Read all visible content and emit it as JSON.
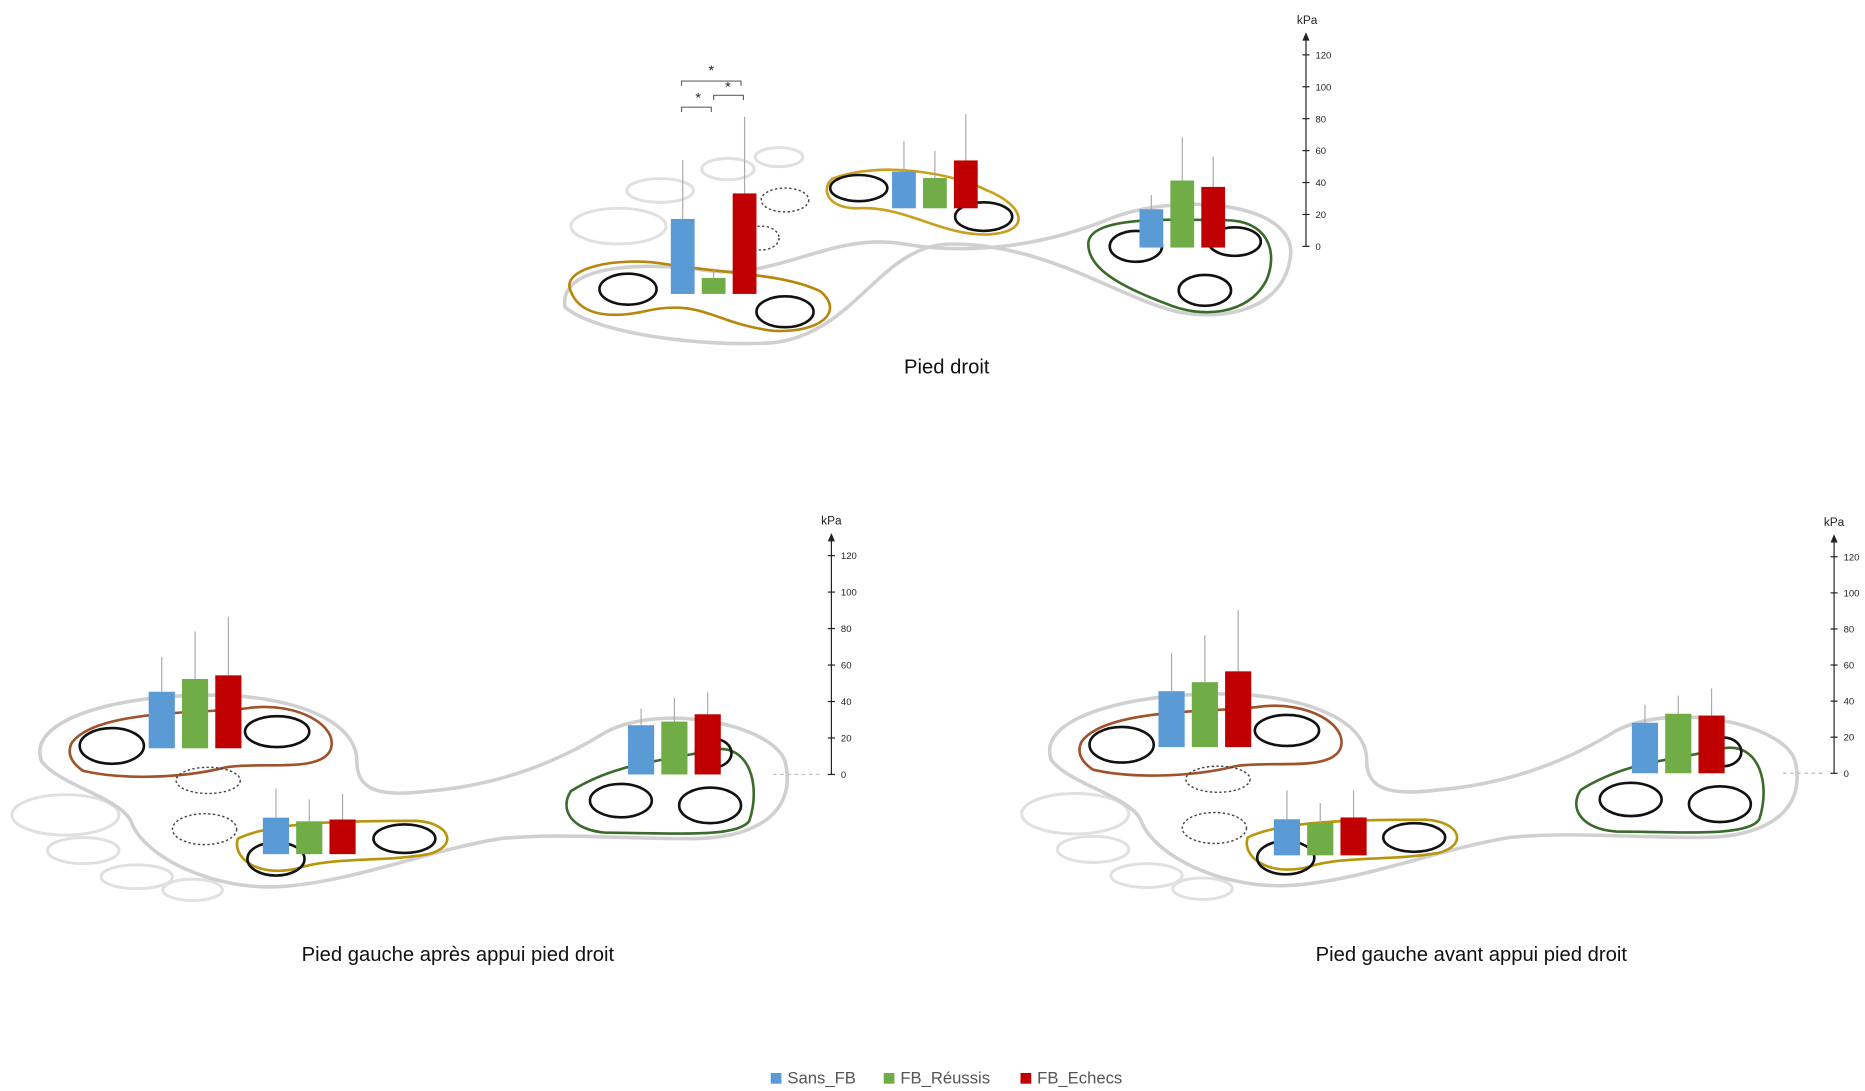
{
  "chart_data": [
    {
      "type": "bar",
      "title": "Pied droit",
      "y_label": "kPa",
      "ylim": [
        0,
        120
      ],
      "yticks": [
        0,
        20,
        40,
        60,
        80,
        100,
        120
      ],
      "series": [
        {
          "values": [
            47,
            23,
            24
          ],
          "errors": [
            37,
            19,
            9
          ]
        },
        {
          "values": [
            10,
            19,
            42
          ],
          "errors": [
            6,
            17,
            27
          ]
        },
        {
          "values": [
            63,
            30,
            38
          ],
          "errors": [
            48,
            29,
            19
          ]
        }
      ],
      "annotations": [
        "*",
        "*",
        "*"
      ]
    },
    {
      "type": "bar",
      "title": "Pied gauche après appui pied droit",
      "y_label": "kPa",
      "ylim": [
        0,
        120
      ],
      "yticks": [
        0,
        20,
        40,
        60,
        80,
        100,
        120
      ],
      "series": [
        {
          "values": [
            31,
            20,
            27
          ],
          "errors": [
            19,
            16,
            9
          ]
        },
        {
          "values": [
            38,
            18,
            29
          ],
          "errors": [
            26,
            12,
            13
          ]
        },
        {
          "values": [
            40,
            19,
            33
          ],
          "errors": [
            32,
            14,
            12
          ]
        }
      ]
    },
    {
      "type": "bar",
      "title": "Pied gauche avant appui pied droit",
      "y_label": "kPa",
      "ylim": [
        0,
        120
      ],
      "yticks": [
        0,
        20,
        40,
        60,
        80,
        100,
        120
      ],
      "series": [
        {
          "values": [
            31,
            20,
            28
          ],
          "errors": [
            21,
            16,
            10
          ]
        },
        {
          "values": [
            36,
            18,
            33
          ],
          "errors": [
            26,
            11,
            10
          ]
        },
        {
          "values": [
            42,
            21,
            32
          ],
          "errors": [
            34,
            15,
            15
          ]
        }
      ]
    }
  ],
  "legend": {
    "series": [
      {
        "name": "Sans_FB",
        "color": "#5b9bd5"
      },
      {
        "name": "FB_Réussis",
        "color": "#70ad47"
      },
      {
        "name": "FB_Echecs",
        "color": "#c00000"
      }
    ]
  }
}
